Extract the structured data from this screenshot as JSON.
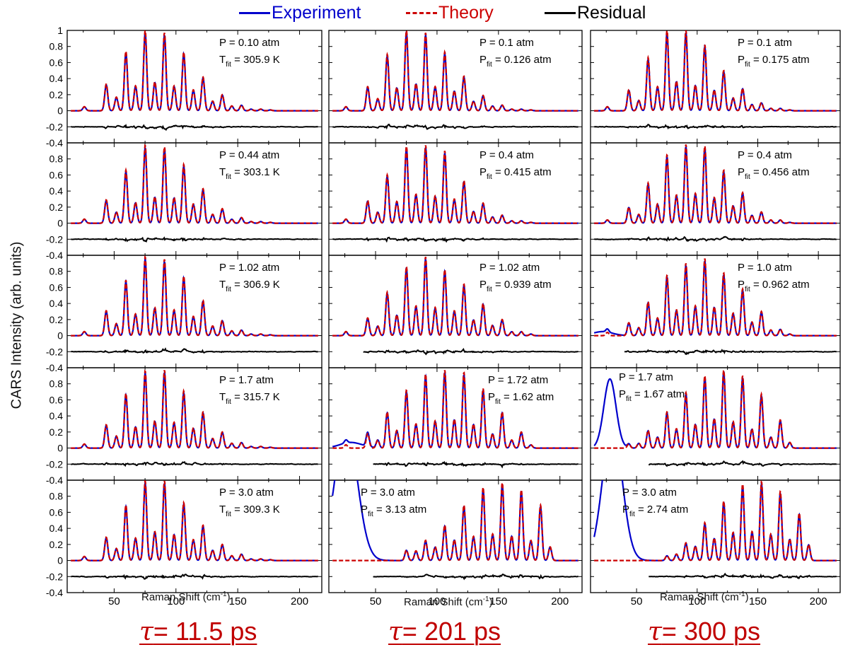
{
  "legend": [
    {
      "label": "Experiment",
      "color": "#0000cc",
      "dash": false
    },
    {
      "label": "Theory",
      "color": "#cc0000",
      "dash": true
    },
    {
      "label": "Residual",
      "color": "#000000",
      "dash": false
    }
  ],
  "ylabel": "CARS Intensity (arb. units)",
  "xlabel_text": "Raman Shift (cm",
  "xlabel_sup": "-1",
  "xlabel_close": ")",
  "tau_prefix": "τ",
  "columns": [
    "= 11.5 ps",
    "= 201 ps",
    "= 300 ps"
  ],
  "chart_data": {
    "type": "line",
    "xlabel": "Raman Shift (cm-1)",
    "ylabel": "CARS Intensity (arb. units)",
    "xlim": [
      12,
      218
    ],
    "ylim": [
      -0.4,
      1.0
    ],
    "yticks": [
      "-0.4",
      "-0.2",
      "0",
      "0.2",
      "0.4",
      "0.6",
      "0.8",
      "1"
    ],
    "xticks": [
      "50",
      "100",
      "150",
      "200"
    ],
    "grid": false,
    "legend_position": "top",
    "series_names": [
      "Experiment",
      "Theory",
      "Residual"
    ],
    "lines": [
      25.9,
      43.6,
      51.8,
      59.5,
      67.3,
      75.1,
      82.9,
      90.7,
      98.5,
      106.3,
      114.1,
      121.9,
      129.7,
      137.5,
      145.2,
      153.0,
      160.8,
      168.6,
      176.4
    ],
    "panels": [
      {
        "row": 0,
        "col": 0,
        "text1": "P = 0.10 atm",
        "text2_main": "T",
        "text2_sub": "fit",
        "text2_rest": " = 305.9 K",
        "peaks": [
          0.05,
          0.33,
          0.17,
          0.74,
          0.31,
          1.0,
          0.36,
          0.97,
          0.31,
          0.73,
          0.26,
          0.42,
          0.12,
          0.2,
          0.06,
          0.07,
          0.02,
          0.02,
          0.01
        ],
        "residual_start": 15
      },
      {
        "row": 1,
        "col": 0,
        "text1": "P = 0.44 atm",
        "text2_main": "T",
        "text2_sub": "fit",
        "text2_rest": " = 303.1 K",
        "peaks": [
          0.05,
          0.29,
          0.14,
          0.66,
          0.26,
          0.97,
          0.33,
          0.95,
          0.32,
          0.73,
          0.24,
          0.43,
          0.11,
          0.18,
          0.05,
          0.07,
          0.02,
          0.02,
          0.01
        ],
        "residual_start": 15
      },
      {
        "row": 2,
        "col": 0,
        "text1": "P = 1.02 atm",
        "text2_main": "T",
        "text2_sub": "fit",
        "text2_rest": " = 306.9 K",
        "peaks": [
          0.05,
          0.31,
          0.15,
          0.69,
          0.27,
          0.98,
          0.35,
          0.95,
          0.32,
          0.74,
          0.24,
          0.44,
          0.12,
          0.19,
          0.06,
          0.07,
          0.02,
          0.02,
          0.01
        ],
        "residual_start": 15
      },
      {
        "row": 3,
        "col": 0,
        "text1": "P = 1.7 atm",
        "text2_main": "T",
        "text2_sub": "fit",
        "text2_rest": " = 315.7 K",
        "peaks": [
          0.05,
          0.29,
          0.15,
          0.68,
          0.27,
          0.96,
          0.34,
          0.97,
          0.32,
          0.71,
          0.25,
          0.45,
          0.12,
          0.2,
          0.06,
          0.07,
          0.02,
          0.02,
          0.01
        ],
        "residual_start": 15
      },
      {
        "row": 4,
        "col": 0,
        "text1": "P = 3.0 atm",
        "text2_main": "T",
        "text2_sub": "fit",
        "text2_rest": " = 309.3 K",
        "peaks": [
          0.05,
          0.29,
          0.15,
          0.69,
          0.28,
          0.99,
          0.36,
          0.99,
          0.33,
          0.72,
          0.26,
          0.44,
          0.13,
          0.2,
          0.06,
          0.08,
          0.02,
          0.02,
          0.01
        ],
        "residual_start": 15
      },
      {
        "row": 0,
        "col": 1,
        "text1": "P = 0.1 atm",
        "text2_main": "P",
        "text2_sub": "fit",
        "text2_rest": " = 0.126 atm",
        "peaks": [
          0.05,
          0.3,
          0.15,
          0.7,
          0.29,
          1.0,
          0.34,
          0.97,
          0.3,
          0.73,
          0.25,
          0.43,
          0.12,
          0.19,
          0.06,
          0.07,
          0.02,
          0.02,
          0.01
        ],
        "residual_start": 15
      },
      {
        "row": 1,
        "col": 1,
        "text1": "P = 0.4 atm",
        "text2_main": "P",
        "text2_sub": "fit",
        "text2_rest": " = 0.415 atm",
        "peaks": [
          0.05,
          0.28,
          0.14,
          0.6,
          0.27,
          0.96,
          0.36,
          0.97,
          0.34,
          0.9,
          0.3,
          0.53,
          0.15,
          0.25,
          0.08,
          0.1,
          0.03,
          0.03,
          0.01
        ],
        "residual_start": 15
      },
      {
        "row": 2,
        "col": 1,
        "text1": "P = 1.02 atm",
        "text2_main": "P",
        "text2_sub": "fit",
        "text2_rest": " = 0.939 atm",
        "peaks": [
          0.05,
          0.22,
          0.12,
          0.54,
          0.26,
          0.86,
          0.37,
          0.98,
          0.35,
          0.82,
          0.31,
          0.64,
          0.2,
          0.4,
          0.13,
          0.2,
          0.05,
          0.05,
          0.02
        ],
        "residual_start": 40
      },
      {
        "row": 3,
        "col": 1,
        "text1": "P = 1.72 atm",
        "text2_main": "P",
        "text2_sub": "fit",
        "text2_rest": " = 1.62 atm",
        "peaks": [
          0.04,
          0.18,
          0.1,
          0.45,
          0.22,
          0.72,
          0.3,
          0.92,
          0.34,
          0.97,
          0.36,
          0.94,
          0.3,
          0.74,
          0.18,
          0.45,
          0.1,
          0.2,
          0.04
        ],
        "broad": [
          {
            "x": 30,
            "h": 0.07,
            "w": 9
          }
        ],
        "residual_start": 48
      },
      {
        "row": 4,
        "col": 1,
        "text1": "P = 3.0 atm",
        "text2_main": "P",
        "text2_sub": "fit",
        "text2_rest": " = 3.13 atm",
        "peaks": [
          0.0,
          0.0,
          0.0,
          0.13,
          0.12,
          0.25,
          0.17,
          0.44,
          0.26,
          0.69,
          0.3,
          0.91,
          0.33,
          0.97,
          0.31,
          0.88,
          0.25,
          0.69,
          0.17
        ],
        "peak_shift": 15.6,
        "broad": [
          {
            "x": 26,
            "h": 1.7,
            "w": 9
          }
        ],
        "residual_start": 48
      },
      {
        "row": 0,
        "col": 2,
        "text1": "P = 0.1 atm",
        "text2_main": "P",
        "text2_sub": "fit",
        "text2_rest": " = 0.175 atm",
        "peaks": [
          0.05,
          0.26,
          0.13,
          0.66,
          0.3,
          1.0,
          0.37,
          1.0,
          0.32,
          0.82,
          0.26,
          0.5,
          0.16,
          0.28,
          0.08,
          0.1,
          0.03,
          0.03,
          0.01
        ],
        "residual_start": 15
      },
      {
        "row": 1,
        "col": 2,
        "text1": "P = 0.4 atm",
        "text2_main": "P",
        "text2_sub": "fit",
        "text2_rest": " = 0.456 atm",
        "peaks": [
          0.04,
          0.2,
          0.11,
          0.5,
          0.24,
          0.85,
          0.35,
          0.98,
          0.37,
          0.96,
          0.32,
          0.66,
          0.22,
          0.38,
          0.1,
          0.14,
          0.04,
          0.04,
          0.01
        ],
        "residual_start": 15
      },
      {
        "row": 2,
        "col": 2,
        "text1": "P = 1.0 atm",
        "text2_main": "P",
        "text2_sub": "fit",
        "text2_rest": " = 0.962 atm",
        "peaks": [
          0.04,
          0.16,
          0.1,
          0.42,
          0.22,
          0.75,
          0.32,
          0.9,
          0.37,
          0.96,
          0.36,
          0.78,
          0.28,
          0.58,
          0.17,
          0.3,
          0.07,
          0.08,
          0.02
        ],
        "broad": [
          {
            "x": 22,
            "h": 0.05,
            "w": 8
          }
        ],
        "residual_start": 40
      },
      {
        "row": 3,
        "col": 2,
        "text1": "P = 1.7 atm",
        "text2_main": "P",
        "text2_sub": "fit",
        "text2_rest": " = 1.67 atm",
        "peaks": [
          0.0,
          0.05,
          0.06,
          0.22,
          0.14,
          0.45,
          0.24,
          0.69,
          0.3,
          0.9,
          0.37,
          0.97,
          0.33,
          0.9,
          0.24,
          0.67,
          0.14,
          0.35,
          0.07
        ],
        "broad": [
          {
            "x": 28,
            "h": 0.86,
            "w": 5
          }
        ],
        "residual_start": 60
      },
      {
        "row": 4,
        "col": 2,
        "text1": "P = 3.0 atm",
        "text2_main": "P",
        "text2_sub": "fit",
        "text2_rest": " = 2.74 atm",
        "peaks": [
          0.0,
          0.0,
          0.0,
          0.06,
          0.08,
          0.22,
          0.18,
          0.47,
          0.28,
          0.74,
          0.35,
          0.95,
          0.36,
          0.98,
          0.33,
          0.86,
          0.27,
          0.59,
          0.2
        ],
        "peak_shift": 15.6,
        "broad": [
          {
            "x": 30,
            "h": 1.7,
            "w": 8
          }
        ],
        "residual_start": 60
      }
    ]
  }
}
